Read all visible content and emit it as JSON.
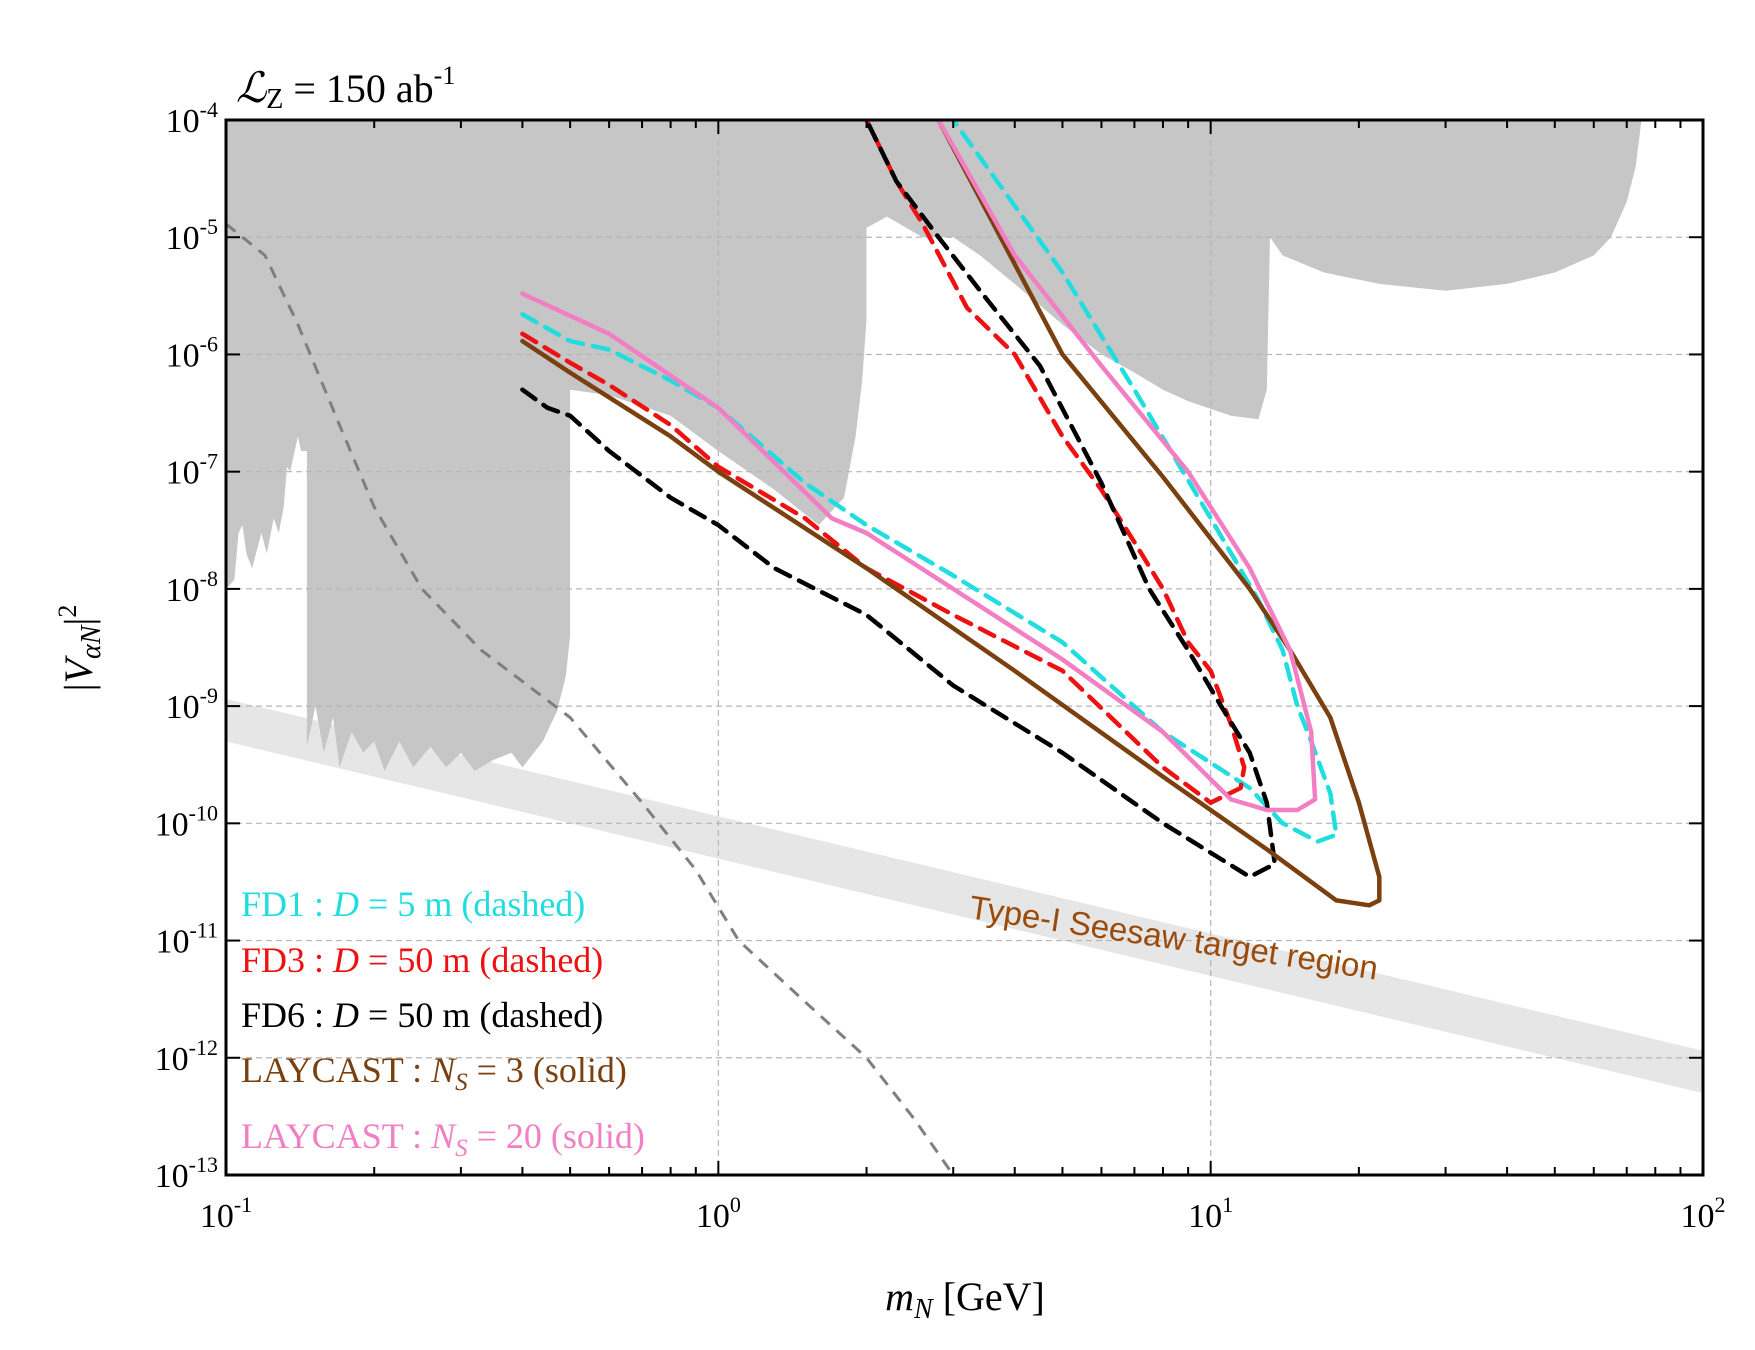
{
  "chart_data": {
    "type": "line",
    "title": "Lℒ",
    "lumi": {
      "symbol": "ℒ",
      "sub": "Z",
      "text": " = 150 ab",
      "sup": "-1"
    },
    "xlabel": {
      "var": "m",
      "sub": "N",
      "unit": " [GeV]"
    },
    "ylabel": {
      "pre": "|",
      "var": "V",
      "sub": "αN",
      "post": "|",
      "sup": "2"
    },
    "xscale": "log",
    "yscale": "log",
    "xlim": [
      0.1,
      100
    ],
    "ylim": [
      1e-13,
      0.0001
    ],
    "grid": true,
    "x_ticks": [
      {
        "base": "10",
        "exp": "-1",
        "v": 0.1
      },
      {
        "base": "10",
        "exp": "0",
        "v": 1
      },
      {
        "base": "10",
        "exp": "1",
        "v": 10
      },
      {
        "base": "10",
        "exp": "2",
        "v": 100
      }
    ],
    "y_ticks": [
      {
        "base": "10",
        "exp": "-4",
        "v": 0.0001
      },
      {
        "base": "10",
        "exp": "-5",
        "v": 1e-05
      },
      {
        "base": "10",
        "exp": "-6",
        "v": 1e-06
      },
      {
        "base": "10",
        "exp": "-7",
        "v": 1e-07
      },
      {
        "base": "10",
        "exp": "-8",
        "v": 1e-08
      },
      {
        "base": "10",
        "exp": "-9",
        "v": 1e-09
      },
      {
        "base": "10",
        "exp": "-10",
        "v": 1e-10
      },
      {
        "base": "10",
        "exp": "-11",
        "v": 1e-11
      },
      {
        "base": "10",
        "exp": "-12",
        "v": 1e-12
      },
      {
        "base": "10",
        "exp": "-13",
        "v": 1e-13
      }
    ],
    "excluded_region": {
      "color": "#c6c6c6",
      "points": [
        [
          0.1,
          1e-08
        ],
        [
          0.104,
          1.2e-08
        ],
        [
          0.106,
          3e-08
        ],
        [
          0.108,
          3.5e-08
        ],
        [
          0.11,
          2e-08
        ],
        [
          0.113,
          1.5e-08
        ],
        [
          0.118,
          3e-08
        ],
        [
          0.121,
          2e-08
        ],
        [
          0.125,
          4e-08
        ],
        [
          0.128,
          3e-08
        ],
        [
          0.131,
          5e-08
        ],
        [
          0.133,
          1.1e-07
        ],
        [
          0.135,
          1e-07
        ],
        [
          0.14,
          2e-07
        ],
        [
          0.142,
          1.5e-07
        ],
        [
          0.146,
          1.5e-07
        ],
        [
          0.146,
          4.5e-10
        ],
        [
          0.152,
          1e-09
        ],
        [
          0.158,
          4e-10
        ],
        [
          0.165,
          8e-10
        ],
        [
          0.17,
          3e-10
        ],
        [
          0.18,
          6e-10
        ],
        [
          0.19,
          4e-10
        ],
        [
          0.2,
          5e-10
        ],
        [
          0.21,
          2.8e-10
        ],
        [
          0.225,
          5e-10
        ],
        [
          0.24,
          3e-10
        ],
        [
          0.26,
          4.5e-10
        ],
        [
          0.28,
          3e-10
        ],
        [
          0.3,
          4e-10
        ],
        [
          0.32,
          2.8e-10
        ],
        [
          0.35,
          3.5e-10
        ],
        [
          0.38,
          4e-10
        ],
        [
          0.4,
          3e-10
        ],
        [
          0.44,
          5e-10
        ],
        [
          0.47,
          9e-10
        ],
        [
          0.49,
          1.8e-09
        ],
        [
          0.5,
          4e-09
        ],
        [
          0.5,
          5e-07
        ],
        [
          0.6,
          4.5e-07
        ],
        [
          0.8,
          3e-07
        ],
        [
          1.0,
          1.5e-07
        ],
        [
          1.3,
          7e-08
        ],
        [
          1.6,
          3.5e-08
        ],
        [
          1.8,
          6e-08
        ],
        [
          1.9,
          2e-07
        ],
        [
          1.96,
          6e-07
        ],
        [
          2.0,
          2e-06
        ],
        [
          2.0,
          1.2e-05
        ],
        [
          2.2,
          1.5e-05
        ],
        [
          2.6,
          1e-05
        ],
        [
          3.0,
          1e-05
        ],
        [
          3.4,
          7e-06
        ],
        [
          4.0,
          4e-06
        ],
        [
          5.0,
          1.8e-06
        ],
        [
          6.0,
          1e-06
        ],
        [
          7.0,
          7e-07
        ],
        [
          8.0,
          5e-07
        ],
        [
          9.0,
          4e-07
        ],
        [
          11.0,
          3e-07
        ],
        [
          12.5,
          2.8e-07
        ],
        [
          13.0,
          5e-07
        ],
        [
          13.2,
          1e-05
        ],
        [
          14.0,
          7e-06
        ],
        [
          17.0,
          5e-06
        ],
        [
          22.0,
          4e-06
        ],
        [
          30.0,
          3.5e-06
        ],
        [
          40.0,
          4e-06
        ],
        [
          50.0,
          5e-06
        ],
        [
          60.0,
          7e-06
        ],
        [
          65.0,
          1e-05
        ],
        [
          70.0,
          2e-05
        ],
        [
          73.0,
          4e-05
        ],
        [
          75.0,
          0.0001
        ],
        [
          0.1,
          0.0001
        ]
      ]
    },
    "seesaw_band": {
      "label": "Type-I Seesaw target region",
      "color": "#e6e6e6",
      "label_color": "#9a4a0a",
      "upper": [
        [
          0.1,
          1.15e-09
        ],
        [
          100,
          1.15e-12
        ]
      ],
      "lower": [
        [
          0.1,
          5e-10
        ],
        [
          100,
          5e-13
        ]
      ]
    },
    "bbn_line": {
      "style": "dashed",
      "color": "#7f7f7f",
      "points": [
        [
          0.1,
          1.3e-05
        ],
        [
          0.12,
          7e-06
        ],
        [
          0.14,
          1.8e-06
        ],
        [
          0.17,
          2.5e-07
        ],
        [
          0.2,
          5e-08
        ],
        [
          0.25,
          1e-08
        ],
        [
          0.33,
          3e-09
        ],
        [
          0.5,
          8e-10
        ],
        [
          0.7,
          1.5e-10
        ],
        [
          0.9,
          4e-11
        ],
        [
          1.1,
          1e-11
        ],
        [
          1.5,
          3e-12
        ],
        [
          2.0,
          1e-12
        ],
        [
          2.5,
          3e-13
        ],
        [
          3.0,
          1e-13
        ]
      ]
    },
    "series": [
      {
        "name": "FD1",
        "color": "#22dde0",
        "style": "dashed",
        "x": [
          0.4,
          0.5,
          0.6,
          0.8,
          1.0,
          1.5,
          2.0,
          3.0,
          5.0,
          8.0,
          12.0,
          14.0,
          16.5,
          18.0,
          17.5,
          16.0,
          15.0,
          14.0,
          12.5,
          10.0,
          7.0,
          5.0,
          3.0
        ],
        "y": [
          2.2e-06,
          1.3e-06,
          1.1e-06,
          6e-07,
          3.5e-07,
          8e-08,
          3.5e-08,
          1.3e-08,
          3.5e-09,
          6e-10,
          2e-10,
          1e-10,
          7e-11,
          8e-11,
          1.8e-10,
          5e-10,
          1e-09,
          3e-09,
          8e-09,
          4e-08,
          5e-07,
          5e-06,
          0.0001
        ]
      },
      {
        "name": "FD3",
        "color": "#ee1111",
        "style": "dashed",
        "x": [
          0.4,
          0.5,
          0.6,
          0.8,
          1.0,
          1.5,
          2.0,
          3.0,
          5.0,
          8.0,
          10.0,
          11.5,
          11.7,
          11.0,
          10.0,
          9.0,
          8.0,
          7.0,
          6.0,
          5.0,
          4.0,
          3.2,
          2.6,
          2.3,
          2.0
        ],
        "y": [
          1.5e-06,
          8.5e-07,
          5.5e-07,
          2.5e-07,
          1.1e-07,
          4e-08,
          1.5e-08,
          6e-09,
          2e-09,
          3e-10,
          1.5e-10,
          2e-10,
          3e-10,
          7e-10,
          2e-09,
          3.5e-09,
          1e-08,
          2.5e-08,
          7e-08,
          2e-07,
          1e-06,
          2.5e-06,
          1.3e-05,
          3e-05,
          0.0001
        ]
      },
      {
        "name": "FD6",
        "color": "#000000",
        "style": "dashed",
        "x": [
          0.4,
          0.45,
          0.5,
          0.6,
          0.8,
          1.0,
          1.3,
          2.0,
          3.0,
          5.0,
          8.0,
          12.0,
          13.5,
          13.0,
          12.0,
          10.5,
          9.0,
          7.5,
          6.0,
          4.5,
          3.5,
          2.8,
          2.3,
          2.0
        ],
        "y": [
          5e-07,
          3.5e-07,
          3e-07,
          1.5e-07,
          6e-08,
          3.5e-08,
          1.5e-08,
          6e-09,
          1.5e-09,
          4e-10,
          1e-10,
          3.5e-11,
          4.5e-11,
          1.5e-10,
          4e-10,
          1e-09,
          3e-09,
          1e-08,
          8e-08,
          8e-07,
          3e-06,
          1e-05,
          3e-05,
          0.0001
        ]
      },
      {
        "name": "LAYCAST N_S = 3",
        "color": "#7a4010",
        "style": "solid",
        "x": [
          0.4,
          0.5,
          0.8,
          1.0,
          2.0,
          4.0,
          8.0,
          13.0,
          18.0,
          21.0,
          22.0,
          22.0,
          20.0,
          17.5,
          14.5,
          12.0,
          8.0,
          5.0,
          2.8
        ],
        "y": [
          1.3e-06,
          7e-07,
          2e-07,
          1e-07,
          1.5e-08,
          2e-09,
          2.5e-10,
          6e-11,
          2.2e-11,
          2e-11,
          2.2e-11,
          3.5e-11,
          1.5e-10,
          8e-10,
          3e-09,
          1e-08,
          9e-08,
          1e-06,
          0.0001
        ]
      },
      {
        "name": "LAYCAST N_S = 20",
        "color": "#f27ec4",
        "style": "solid",
        "x": [
          0.4,
          0.6,
          1.0,
          1.7,
          2.0,
          3.0,
          5.0,
          8.0,
          11.0,
          13.0,
          15.0,
          16.3,
          16.0,
          14.5,
          12.0,
          9.0,
          6.0,
          4.0,
          2.8
        ],
        "y": [
          3.3e-06,
          1.5e-06,
          3.5e-07,
          4e-08,
          3e-08,
          1e-08,
          2.5e-09,
          6e-10,
          1.6e-10,
          1.3e-10,
          1.3e-10,
          1.6e-10,
          6e-10,
          3e-09,
          1.5e-08,
          1e-07,
          8e-07,
          7e-06,
          0.0001
        ]
      }
    ],
    "legend": [
      {
        "label": "FD1",
        "sep": " : ",
        "var": "D",
        "sub": "",
        "rest": " = 5 m (dashed)",
        "color": "#22dde0"
      },
      {
        "label": "FD3",
        "sep": " : ",
        "var": "D",
        "sub": "",
        "rest": " = 50 m (dashed)",
        "color": "#ee1111"
      },
      {
        "label": "FD6",
        "sep": " : ",
        "var": "D",
        "sub": "",
        "rest": " = 50 m (dashed)",
        "color": "#000000"
      },
      {
        "label": "LAYCAST",
        "sep": " : ",
        "var": "N",
        "sub": "S",
        "rest": " = 3 (solid)",
        "color": "#7a4010"
      },
      {
        "label": "LAYCAST",
        "sep": " : ",
        "var": "N",
        "sub": "S",
        "rest": " = 20 (solid)",
        "color": "#f27ec4"
      }
    ],
    "legend_position": "bottom-left"
  }
}
